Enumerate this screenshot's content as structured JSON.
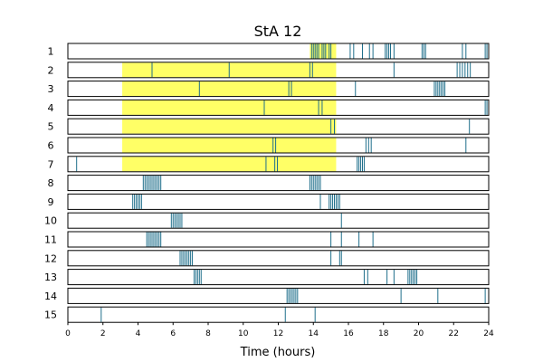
{
  "chart_data": {
    "type": "event-raster",
    "title": "StA 12",
    "xlabel": "Time (hours)",
    "xlim": [
      0,
      24
    ],
    "xticks": [
      0,
      2,
      4,
      6,
      8,
      10,
      12,
      14,
      16,
      18,
      20,
      22,
      24
    ],
    "event_color": "#1f6f8b",
    "highlight_color": "#ffff66",
    "rows": [
      {
        "label": "1",
        "highlight": [
          13.8,
          15.3
        ],
        "events": [
          13.9,
          14.0,
          14.1,
          14.2,
          14.3,
          14.5,
          14.6,
          14.7,
          14.9,
          15.0,
          16.1,
          16.3,
          16.8,
          17.2,
          17.4,
          18.1,
          18.2,
          18.3,
          18.4,
          18.6,
          20.2,
          20.3,
          20.4,
          22.5,
          22.7,
          23.8,
          23.9
        ]
      },
      {
        "label": "2",
        "highlight": [
          3.1,
          15.3
        ],
        "events": [
          4.8,
          9.2,
          13.8,
          13.95,
          18.6,
          22.2,
          22.35,
          22.5,
          22.65,
          22.8,
          22.95
        ]
      },
      {
        "label": "3",
        "highlight": [
          3.1,
          15.3
        ],
        "events": [
          7.5,
          12.6,
          12.75,
          16.4,
          20.9,
          21.0,
          21.1,
          21.2,
          21.3,
          21.4,
          21.5
        ]
      },
      {
        "label": "4",
        "highlight": [
          3.1,
          15.3
        ],
        "events": [
          11.2,
          14.3,
          14.5,
          23.8,
          23.9
        ]
      },
      {
        "label": "5",
        "highlight": [
          3.1,
          15.3
        ],
        "events": [
          15.0,
          15.2,
          22.9
        ]
      },
      {
        "label": "6",
        "highlight": [
          3.1,
          15.3
        ],
        "events": [
          11.7,
          11.85,
          17.0,
          17.15,
          17.3,
          22.7
        ]
      },
      {
        "label": "7",
        "highlight": [
          3.1,
          15.3
        ],
        "events": [
          0.5,
          11.3,
          11.8,
          11.95,
          16.5,
          16.6,
          16.7,
          16.8,
          16.9
        ]
      },
      {
        "label": "8",
        "highlight": null,
        "events": [
          4.3,
          4.4,
          4.5,
          4.6,
          4.7,
          4.8,
          4.9,
          5.0,
          5.1,
          5.2,
          5.3,
          13.8,
          13.9,
          14.0,
          14.1,
          14.2,
          14.3,
          14.4
        ]
      },
      {
        "label": "9",
        "highlight": null,
        "events": [
          3.7,
          3.8,
          3.9,
          4.0,
          4.1,
          4.2,
          14.4,
          14.9,
          15.0,
          15.1,
          15.2,
          15.3,
          15.4,
          15.5
        ]
      },
      {
        "label": "10",
        "highlight": null,
        "events": [
          5.9,
          6.0,
          6.1,
          6.2,
          6.3,
          6.4,
          6.5,
          15.6
        ]
      },
      {
        "label": "11",
        "highlight": null,
        "events": [
          4.5,
          4.6,
          4.7,
          4.8,
          4.9,
          5.0,
          5.1,
          5.2,
          5.3,
          15.0,
          15.6,
          16.6,
          17.4
        ]
      },
      {
        "label": "12",
        "highlight": null,
        "events": [
          6.4,
          6.5,
          6.6,
          6.7,
          6.8,
          6.9,
          7.0,
          7.1,
          15.0,
          15.5,
          15.6
        ]
      },
      {
        "label": "13",
        "highlight": null,
        "events": [
          7.2,
          7.3,
          7.4,
          7.5,
          7.6,
          16.9,
          17.1,
          18.2,
          18.6,
          19.4,
          19.5,
          19.6,
          19.7,
          19.8,
          19.9
        ]
      },
      {
        "label": "14",
        "highlight": null,
        "events": [
          12.5,
          12.6,
          12.7,
          12.8,
          12.9,
          13.0,
          13.1,
          19.0,
          21.1,
          23.8
        ]
      },
      {
        "label": "15",
        "highlight": null,
        "events": [
          1.9,
          12.4,
          14.1
        ]
      }
    ]
  }
}
